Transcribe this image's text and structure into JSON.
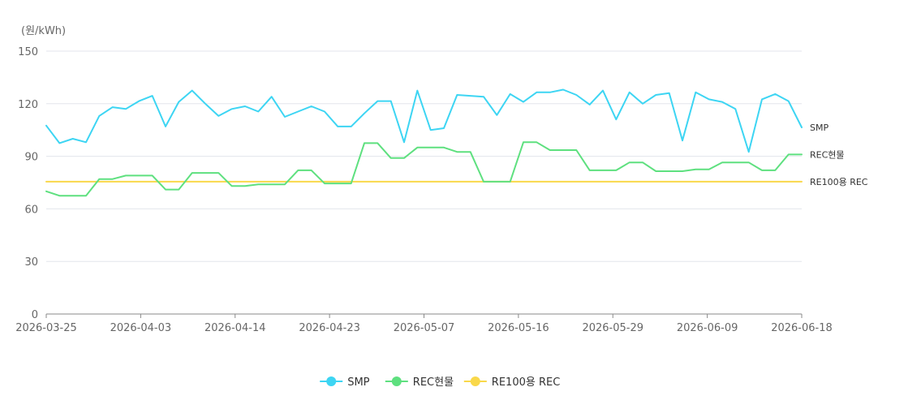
{
  "chart_data": {
    "type": "line",
    "unit_label": "(원/kWh)",
    "ylim": [
      0,
      150
    ],
    "y_ticks": [
      0,
      30,
      60,
      90,
      120,
      150
    ],
    "x_tick_labels": [
      "2026-03-25",
      "2026-04-03",
      "2026-04-14",
      "2026-04-23",
      "2026-05-07",
      "2026-05-16",
      "2026-05-29",
      "2026-06-09",
      "2026-06-18"
    ],
    "grid": "horizontal",
    "legend_position": "bottom",
    "series": [
      {
        "name": "SMP",
        "color": "#3dd5f3",
        "values": [
          107.5,
          97.5,
          100,
          98,
          113,
          118,
          117,
          121.5,
          124.5,
          107,
          121,
          127.5,
          120,
          113,
          117,
          118.5,
          115.5,
          124,
          112.5,
          115.5,
          118.5,
          115.5,
          107,
          107,
          114.5,
          121.5,
          121.5,
          98,
          127.5,
          105,
          106,
          125,
          124.5,
          124,
          113.5,
          125.5,
          121,
          126.5,
          126.5,
          128,
          125,
          119.5,
          127.5,
          111,
          126.5,
          120,
          125,
          126,
          99,
          126.5,
          122.5,
          121,
          117,
          92.5,
          122.5,
          125.5,
          121.5,
          106.5
        ]
      },
      {
        "name": "REC현물",
        "color": "#5ee07f",
        "values": [
          70,
          67.5,
          67.5,
          67.5,
          77,
          77,
          79,
          79,
          79,
          71,
          71,
          80.5,
          80.5,
          80.5,
          73,
          73,
          74,
          74,
          74,
          82,
          82,
          74.5,
          74.5,
          74.5,
          97.5,
          97.5,
          89,
          89,
          95,
          95,
          95,
          92.5,
          92.5,
          75.5,
          75.5,
          75.5,
          98,
          98,
          93.5,
          93.5,
          93.5,
          82,
          82,
          82,
          86.5,
          86.5,
          81.5,
          81.5,
          81.5,
          82.5,
          82.5,
          86.5,
          86.5,
          86.5,
          82,
          82,
          91,
          91
        ]
      },
      {
        "name": "RE100용 REC",
        "color": "#f9d84a",
        "values": [
          75.5,
          75.5,
          75.5,
          75.5,
          75.5,
          75.5,
          75.5,
          75.5,
          75.5,
          75.5,
          75.5,
          75.5,
          75.5,
          75.5,
          75.5,
          75.5,
          75.5,
          75.5,
          75.5,
          75.5,
          75.5,
          75.5,
          75.5,
          75.5,
          75.5,
          75.5,
          75.5,
          75.5,
          75.5,
          75.5,
          75.5,
          75.5,
          75.5,
          75.5,
          75.5,
          75.5,
          75.5,
          75.5,
          75.5,
          75.5,
          75.5,
          75.5,
          75.5,
          75.5,
          75.5,
          75.5,
          75.5,
          75.5,
          75.5,
          75.5,
          75.5,
          75.5,
          75.5,
          75.5,
          75.5,
          75.5,
          75.5,
          75.5
        ]
      }
    ],
    "end_labels": [
      "SMP",
      "REC현물",
      "RE100용 REC"
    ]
  }
}
